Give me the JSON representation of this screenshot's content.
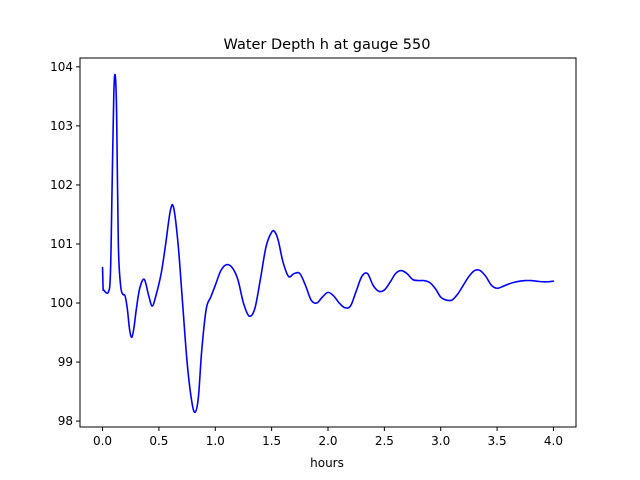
{
  "chart_data": {
    "type": "line",
    "title": "Water Depth h at gauge 550",
    "xlabel": "hours",
    "ylabel": "",
    "xlim": [
      -0.2,
      4.2
    ],
    "ylim": [
      97.9,
      104.15
    ],
    "x_ticks": [
      0.0,
      0.5,
      1.0,
      1.5,
      2.0,
      2.5,
      3.0,
      3.5,
      4.0
    ],
    "x_tick_labels": [
      "0.0",
      "0.5",
      "1.0",
      "1.5",
      "2.0",
      "2.5",
      "3.0",
      "3.5",
      "4.0"
    ],
    "y_ticks": [
      98,
      99,
      100,
      101,
      102,
      103,
      104
    ],
    "y_tick_labels": [
      "98",
      "99",
      "100",
      "101",
      "102",
      "103",
      "104"
    ],
    "grid": false,
    "series": [
      {
        "color": "#0000ff",
        "x": [
          0.0,
          0.005,
          0.01,
          0.05,
          0.07,
          0.085,
          0.1,
          0.113,
          0.125,
          0.14,
          0.16,
          0.18,
          0.2,
          0.22,
          0.24,
          0.26,
          0.28,
          0.3,
          0.33,
          0.37,
          0.41,
          0.44,
          0.47,
          0.52,
          0.56,
          0.6,
          0.63,
          0.67,
          0.71,
          0.75,
          0.79,
          0.82,
          0.85,
          0.88,
          0.92,
          0.96,
          1.0,
          1.05,
          1.1,
          1.15,
          1.2,
          1.25,
          1.3,
          1.35,
          1.4,
          1.45,
          1.5,
          1.53,
          1.56,
          1.6,
          1.65,
          1.7,
          1.75,
          1.8,
          1.85,
          1.9,
          1.95,
          2.0,
          2.05,
          2.1,
          2.15,
          2.2,
          2.25,
          2.3,
          2.35,
          2.4,
          2.45,
          2.5,
          2.55,
          2.6,
          2.65,
          2.7,
          2.75,
          2.8,
          2.85,
          2.9,
          2.95,
          3.0,
          3.05,
          3.1,
          3.15,
          3.2,
          3.25,
          3.3,
          3.35,
          3.4,
          3.45,
          3.5,
          3.55,
          3.6,
          3.65,
          3.7,
          3.75,
          3.8,
          3.85,
          3.9,
          3.95,
          4.0
        ],
        "y": [
          100.6,
          100.25,
          100.22,
          100.18,
          100.5,
          102.0,
          103.55,
          103.85,
          103.2,
          101.0,
          100.3,
          100.15,
          100.12,
          99.9,
          99.55,
          99.42,
          99.6,
          99.9,
          100.25,
          100.4,
          100.12,
          99.95,
          100.1,
          100.5,
          101.0,
          101.55,
          101.62,
          101.0,
          100.0,
          99.0,
          98.35,
          98.15,
          98.4,
          99.2,
          99.9,
          100.1,
          100.3,
          100.55,
          100.65,
          100.6,
          100.4,
          100.0,
          99.78,
          99.9,
          100.4,
          100.95,
          101.2,
          101.2,
          101.05,
          100.7,
          100.45,
          100.5,
          100.5,
          100.3,
          100.05,
          100.0,
          100.1,
          100.18,
          100.12,
          100.0,
          99.92,
          99.95,
          100.2,
          100.45,
          100.5,
          100.3,
          100.2,
          100.22,
          100.35,
          100.5,
          100.55,
          100.5,
          100.4,
          100.38,
          100.38,
          100.35,
          100.25,
          100.1,
          100.05,
          100.05,
          100.15,
          100.3,
          100.45,
          100.55,
          100.55,
          100.45,
          100.3,
          100.25,
          100.28,
          100.32,
          100.35,
          100.37,
          100.38,
          100.38,
          100.37,
          100.36,
          100.36,
          100.37
        ]
      }
    ]
  }
}
